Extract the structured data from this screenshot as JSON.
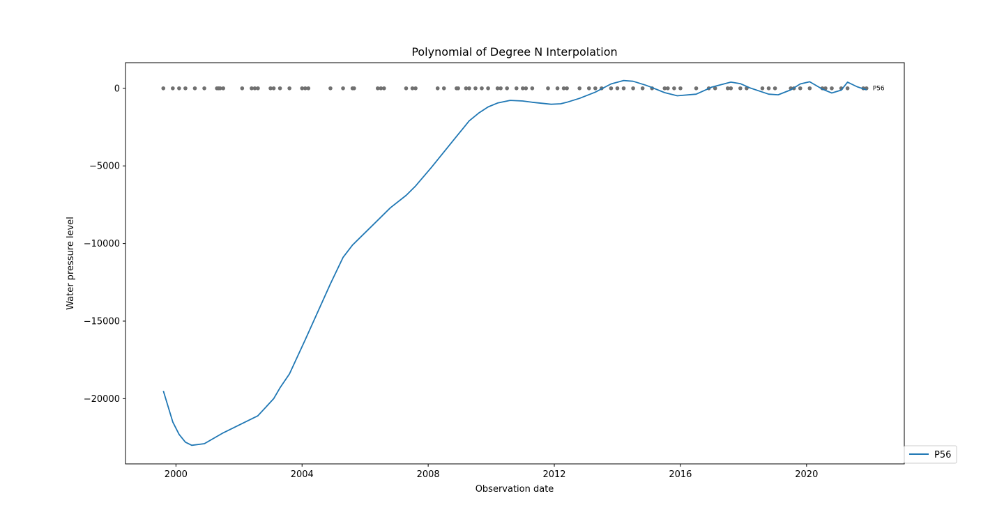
{
  "chart_data": {
    "type": "line",
    "title": "Polynomial of Degree N Interpolation",
    "xlabel": "Observation date",
    "ylabel": "Water pressure level",
    "xlim": [
      1998.4,
      2023.1
    ],
    "ylim": [
      -24200,
      1650
    ],
    "x_ticks": [
      2000,
      2004,
      2008,
      2012,
      2016,
      2020
    ],
    "x_tick_labels": [
      "2000",
      "2004",
      "2008",
      "2012",
      "2016",
      "2020"
    ],
    "y_ticks": [
      0,
      -5000,
      -10000,
      -15000,
      -20000
    ],
    "y_tick_labels": [
      "0",
      "−5000",
      "−10000",
      "−15000",
      "−20000"
    ],
    "grid": false,
    "legend": {
      "placement": "outside-bottom-right",
      "entries": [
        "P56"
      ]
    },
    "annotation": {
      "text": "P56",
      "x": 2022.1,
      "y": 0
    },
    "series": [
      {
        "name": "P56",
        "color": "#1f77b4",
        "x": [
          1999.6,
          1999.9,
          2000.1,
          2000.3,
          2000.5,
          2000.9,
          2001.5,
          2002.1,
          2002.6,
          2003.1,
          2003.3,
          2003.6,
          2004.1,
          2004.9,
          2005.3,
          2005.6,
          2006.4,
          2006.8,
          2007.3,
          2007.6,
          2008.1,
          2008.3,
          2008.9,
          2009.1,
          2009.3,
          2009.6,
          2009.9,
          2010.2,
          2010.6,
          2011.0,
          2011.3,
          2011.9,
          2012.2,
          2012.4,
          2012.8,
          2013.3,
          2013.8,
          2014.2,
          2014.5,
          2014.9,
          2015.1,
          2015.5,
          2015.9,
          2016.5,
          2017.0,
          2017.6,
          2017.9,
          2018.2,
          2018.8,
          2019.1,
          2019.5,
          2019.8,
          2020.1,
          2020.5,
          2020.8,
          2021.1,
          2021.3,
          2021.6,
          2021.9
        ],
        "y": [
          -19500,
          -21500,
          -22300,
          -22800,
          -23000,
          -22900,
          -22200,
          -21600,
          -21100,
          -20000,
          -19300,
          -18400,
          -16200,
          -12600,
          -10900,
          -10100,
          -8500,
          -7700,
          -6900,
          -6300,
          -5100,
          -4600,
          -3100,
          -2600,
          -2100,
          -1600,
          -1200,
          -950,
          -780,
          -820,
          -900,
          -1030,
          -1000,
          -900,
          -650,
          -250,
          280,
          500,
          450,
          200,
          50,
          -280,
          -480,
          -380,
          80,
          400,
          300,
          30,
          -380,
          -420,
          -100,
          280,
          420,
          -50,
          -300,
          -120,
          400,
          100,
          -100
        ]
      }
    ],
    "observation_markers": {
      "color": "#707070",
      "y": 0,
      "x": [
        1999.6,
        1999.9,
        2000.1,
        2000.3,
        2000.6,
        2000.9,
        2001.3,
        2001.35,
        2001.4,
        2001.5,
        2002.1,
        2002.4,
        2002.5,
        2002.6,
        2003.0,
        2003.1,
        2003.3,
        2003.6,
        2004.0,
        2004.1,
        2004.2,
        2004.9,
        2005.3,
        2005.6,
        2005.65,
        2006.4,
        2006.5,
        2006.6,
        2007.3,
        2007.5,
        2007.6,
        2008.3,
        2008.5,
        2008.9,
        2008.95,
        2009.2,
        2009.3,
        2009.5,
        2009.7,
        2009.9,
        2010.2,
        2010.3,
        2010.5,
        2010.8,
        2011.0,
        2011.1,
        2011.3,
        2011.8,
        2012.1,
        2012.3,
        2012.4,
        2012.8,
        2013.1,
        2013.3,
        2013.5,
        2013.8,
        2014.0,
        2014.2,
        2014.5,
        2014.8,
        2015.1,
        2015.5,
        2015.6,
        2015.8,
        2016.0,
        2016.5,
        2016.9,
        2017.1,
        2017.5,
        2017.6,
        2017.9,
        2018.1,
        2018.6,
        2018.8,
        2019.0,
        2019.5,
        2019.6,
        2019.8,
        2020.1,
        2020.5,
        2020.6,
        2020.8,
        2021.1,
        2021.3,
        2021.8,
        2021.9
      ]
    }
  }
}
